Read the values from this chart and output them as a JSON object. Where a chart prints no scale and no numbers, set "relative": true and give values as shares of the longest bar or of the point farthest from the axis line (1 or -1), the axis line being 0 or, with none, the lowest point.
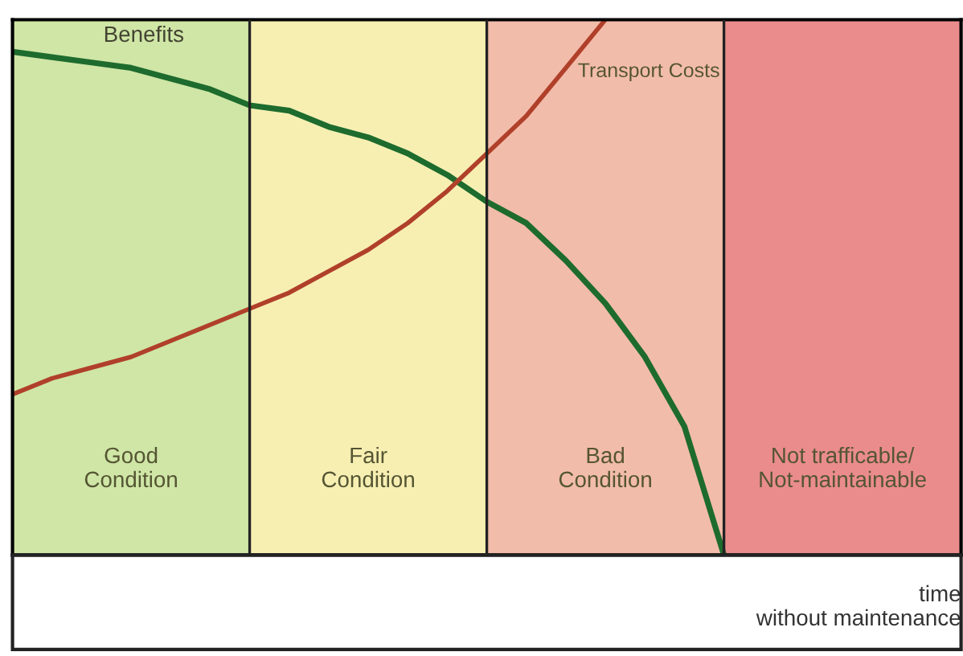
{
  "chart_data": {
    "type": "line",
    "relative": true,
    "xlabel": "time\nwithout maintenance",
    "categories": [
      null,
      null,
      null,
      null,
      null,
      null,
      null,
      null,
      null,
      null,
      null,
      null,
      null,
      null,
      null,
      null,
      null,
      null,
      null,
      null,
      null,
      null,
      null,
      null,
      null
    ],
    "series": [
      {
        "name": "Benefits",
        "color": "#1e6b2e",
        "values": [
          0.94,
          0.93,
          0.92,
          0.91,
          0.89,
          0.87,
          0.84,
          0.83,
          0.8,
          0.78,
          0.75,
          0.71,
          0.66,
          0.62,
          0.55,
          0.47,
          0.37,
          0.24,
          0,
          null,
          null,
          null,
          null,
          null,
          null
        ]
      },
      {
        "name": "Transport Costs",
        "color": "#b0402a",
        "values": [
          0.3,
          0.33,
          0.35,
          0.37,
          0.4,
          0.43,
          0.46,
          0.49,
          0.53,
          0.57,
          0.62,
          0.68,
          0.75,
          0.82,
          0.91,
          1.0,
          null,
          null,
          null,
          null,
          null,
          null,
          null,
          null,
          null
        ]
      }
    ],
    "annotations": [
      "Good\nCondition",
      "Fair\nCondition",
      "Bad\nCondition",
      "Not trafficable/\nNot-maintainable"
    ],
    "grid": "x",
    "legend": false,
    "marker": "none",
    "line_style": "solid"
  }
}
